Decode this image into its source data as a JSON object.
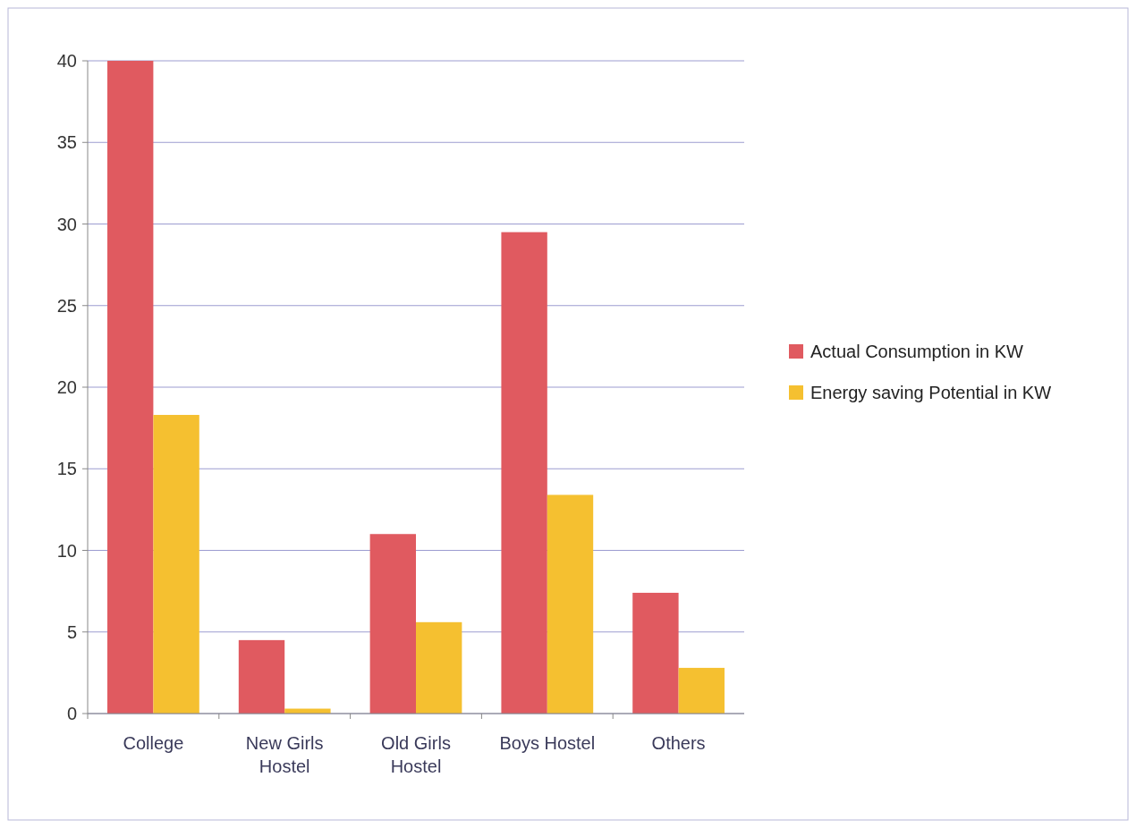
{
  "chart_data": {
    "type": "bar",
    "categories": [
      "College",
      "New Girls Hostel",
      "Old Girls Hostel",
      "Boys Hostel",
      "Others"
    ],
    "series": [
      {
        "name": "Actual Consumption in KW",
        "color": "#e05a60",
        "values": [
          40,
          4.5,
          11,
          29.5,
          7.4
        ]
      },
      {
        "name": "Energy saving Potential in KW",
        "color": "#f5c030",
        "values": [
          18.3,
          0.3,
          5.6,
          13.4,
          2.8
        ]
      }
    ],
    "ylim": [
      0,
      40
    ],
    "yticks": [
      0,
      5,
      10,
      15,
      20,
      25,
      30,
      35,
      40
    ],
    "grid": "y",
    "legend": "right"
  }
}
